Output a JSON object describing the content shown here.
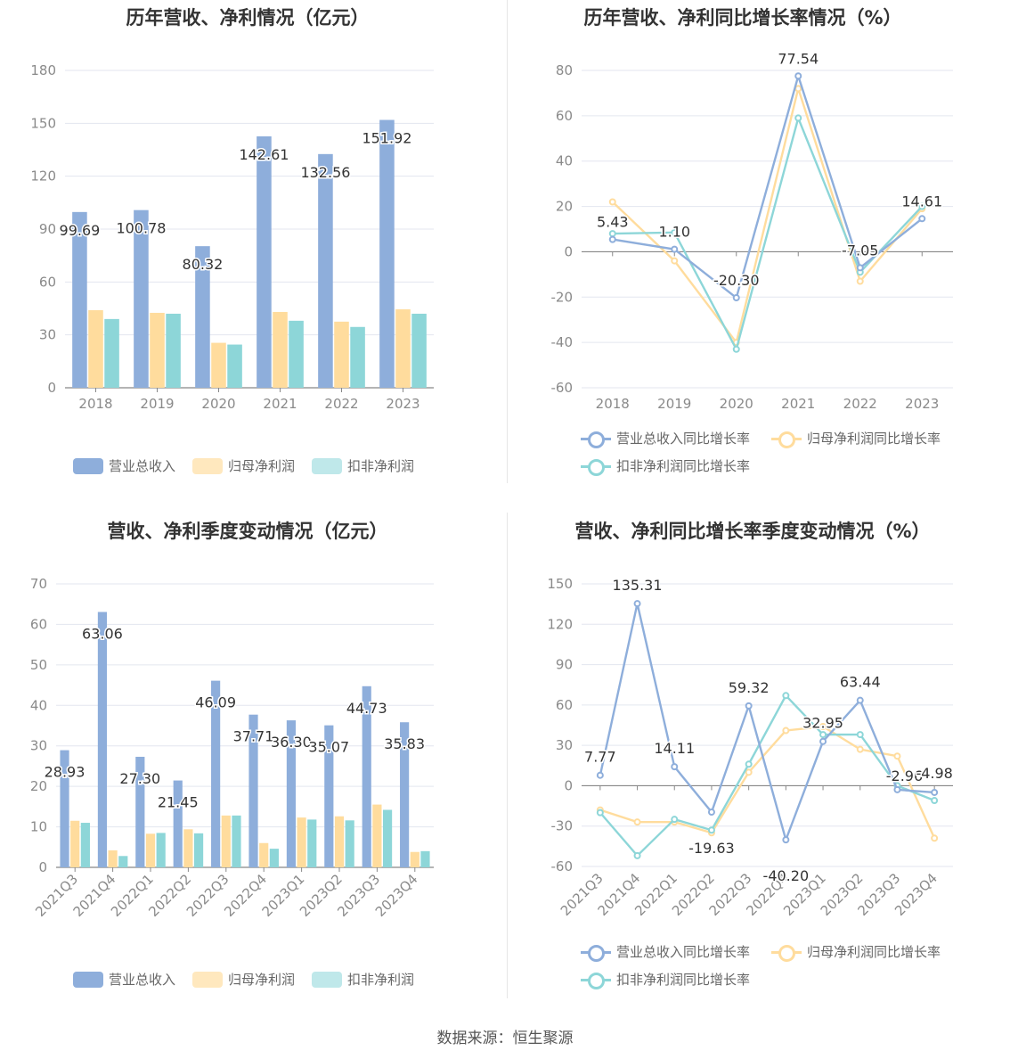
{
  "colors": {
    "revenue": "#8eaedb",
    "netprofit": "#ffdc9d",
    "deducted": "#8dd6d8"
  },
  "footer": "数据来源：恒生聚源",
  "chart_data": [
    {
      "type": "bar",
      "title": "历年营收、净利情况（亿元）",
      "categories": [
        "2018",
        "2019",
        "2020",
        "2021",
        "2022",
        "2023"
      ],
      "ylim": [
        0,
        180
      ],
      "yticks": [
        0,
        30,
        60,
        90,
        120,
        150,
        180
      ],
      "grid": true,
      "legend_position": "bottom",
      "series": [
        {
          "name": "营业总收入",
          "values": [
            99.69,
            100.78,
            80.32,
            142.61,
            132.56,
            151.92
          ],
          "labels": [
            "99.69",
            "100.78",
            "80.32",
            "142.61",
            "132.56",
            "151.92"
          ]
        },
        {
          "name": "归母净利润",
          "values": [
            44.0,
            42.5,
            25.5,
            43.0,
            37.5,
            44.5
          ],
          "approximate": true
        },
        {
          "name": "扣非净利润",
          "values": [
            39.0,
            42.0,
            24.5,
            38.0,
            34.5,
            42.0
          ],
          "approximate": true
        }
      ]
    },
    {
      "type": "line",
      "title": "历年营收、净利同比增长率情况（%）",
      "categories": [
        "2018",
        "2019",
        "2020",
        "2021",
        "2022",
        "2023"
      ],
      "ylim": [
        -60,
        80
      ],
      "yticks": [
        -60,
        -40,
        -20,
        0,
        20,
        40,
        60,
        80
      ],
      "grid": true,
      "legend_position": "bottom",
      "series": [
        {
          "name": "营业总收入同比增长率",
          "values": [
            5.43,
            1.1,
            -20.3,
            77.54,
            -7.05,
            14.61
          ],
          "labels": [
            "5.43",
            "1.10",
            "-20.30",
            "77.54",
            "-7.05",
            "14.61"
          ]
        },
        {
          "name": "归母净利润同比增长率",
          "values": [
            22,
            -4,
            -40,
            72,
            -13,
            19
          ],
          "approximate": true
        },
        {
          "name": "扣非净利润同比增长率",
          "values": [
            8,
            8.5,
            -43,
            59,
            -9,
            20
          ],
          "approximate": true
        }
      ]
    },
    {
      "type": "bar",
      "title": "营收、净利季度变动情况（亿元）",
      "categories": [
        "2021Q3",
        "2021Q4",
        "2022Q1",
        "2022Q2",
        "2022Q3",
        "2022Q4",
        "2023Q1",
        "2023Q2",
        "2023Q3",
        "2023Q4"
      ],
      "ylim": [
        0,
        70
      ],
      "yticks": [
        0,
        10,
        20,
        30,
        40,
        50,
        60,
        70
      ],
      "grid": true,
      "legend_position": "bottom",
      "series": [
        {
          "name": "营业总收入",
          "values": [
            28.93,
            63.06,
            27.3,
            21.45,
            46.09,
            37.71,
            36.3,
            35.07,
            44.73,
            35.83
          ],
          "labels": [
            "28.93",
            "63.06",
            "27.30",
            "21.45",
            "46.09",
            "37.71",
            "36.30",
            "35.07",
            "44.73",
            "35.83"
          ]
        },
        {
          "name": "归母净利润",
          "values": [
            11.5,
            4.2,
            8.3,
            9.4,
            12.8,
            6.0,
            12.3,
            12.6,
            15.5,
            3.8
          ],
          "approximate": true
        },
        {
          "name": "扣非净利润",
          "values": [
            11.0,
            2.8,
            8.5,
            8.4,
            12.8,
            4.6,
            11.8,
            11.6,
            14.2,
            4.0
          ],
          "approximate": true
        }
      ]
    },
    {
      "type": "line",
      "title": "营收、净利同比增长率季度变动情况（%）",
      "categories": [
        "2021Q3",
        "2021Q4",
        "2022Q1",
        "2022Q2",
        "2022Q3",
        "2022Q4",
        "2023Q1",
        "2023Q2",
        "2023Q3",
        "2023Q4"
      ],
      "ylim": [
        -60,
        150
      ],
      "yticks": [
        -60,
        -30,
        0,
        30,
        60,
        90,
        120,
        150
      ],
      "grid": true,
      "legend_position": "bottom",
      "series": [
        {
          "name": "营业总收入同比增长率",
          "values": [
            7.77,
            135.31,
            14.11,
            -19.63,
            59.32,
            -40.2,
            32.95,
            63.44,
            -2.96,
            -4.98
          ],
          "labels": [
            "7.77",
            "135.31",
            "14.11",
            "-19.63",
            "59.32",
            "-40.20",
            "32.95",
            "63.44",
            "-2.96",
            "-4.98"
          ]
        },
        {
          "name": "归母净利润同比增长率",
          "values": [
            -18,
            -27,
            -27,
            -35,
            10,
            41,
            44,
            27,
            22,
            -39
          ],
          "approximate": true
        },
        {
          "name": "扣非净利润同比增长率",
          "values": [
            -20,
            -52,
            -25,
            -33,
            16,
            67,
            38,
            38,
            0,
            -11
          ],
          "approximate": true
        }
      ]
    }
  ]
}
